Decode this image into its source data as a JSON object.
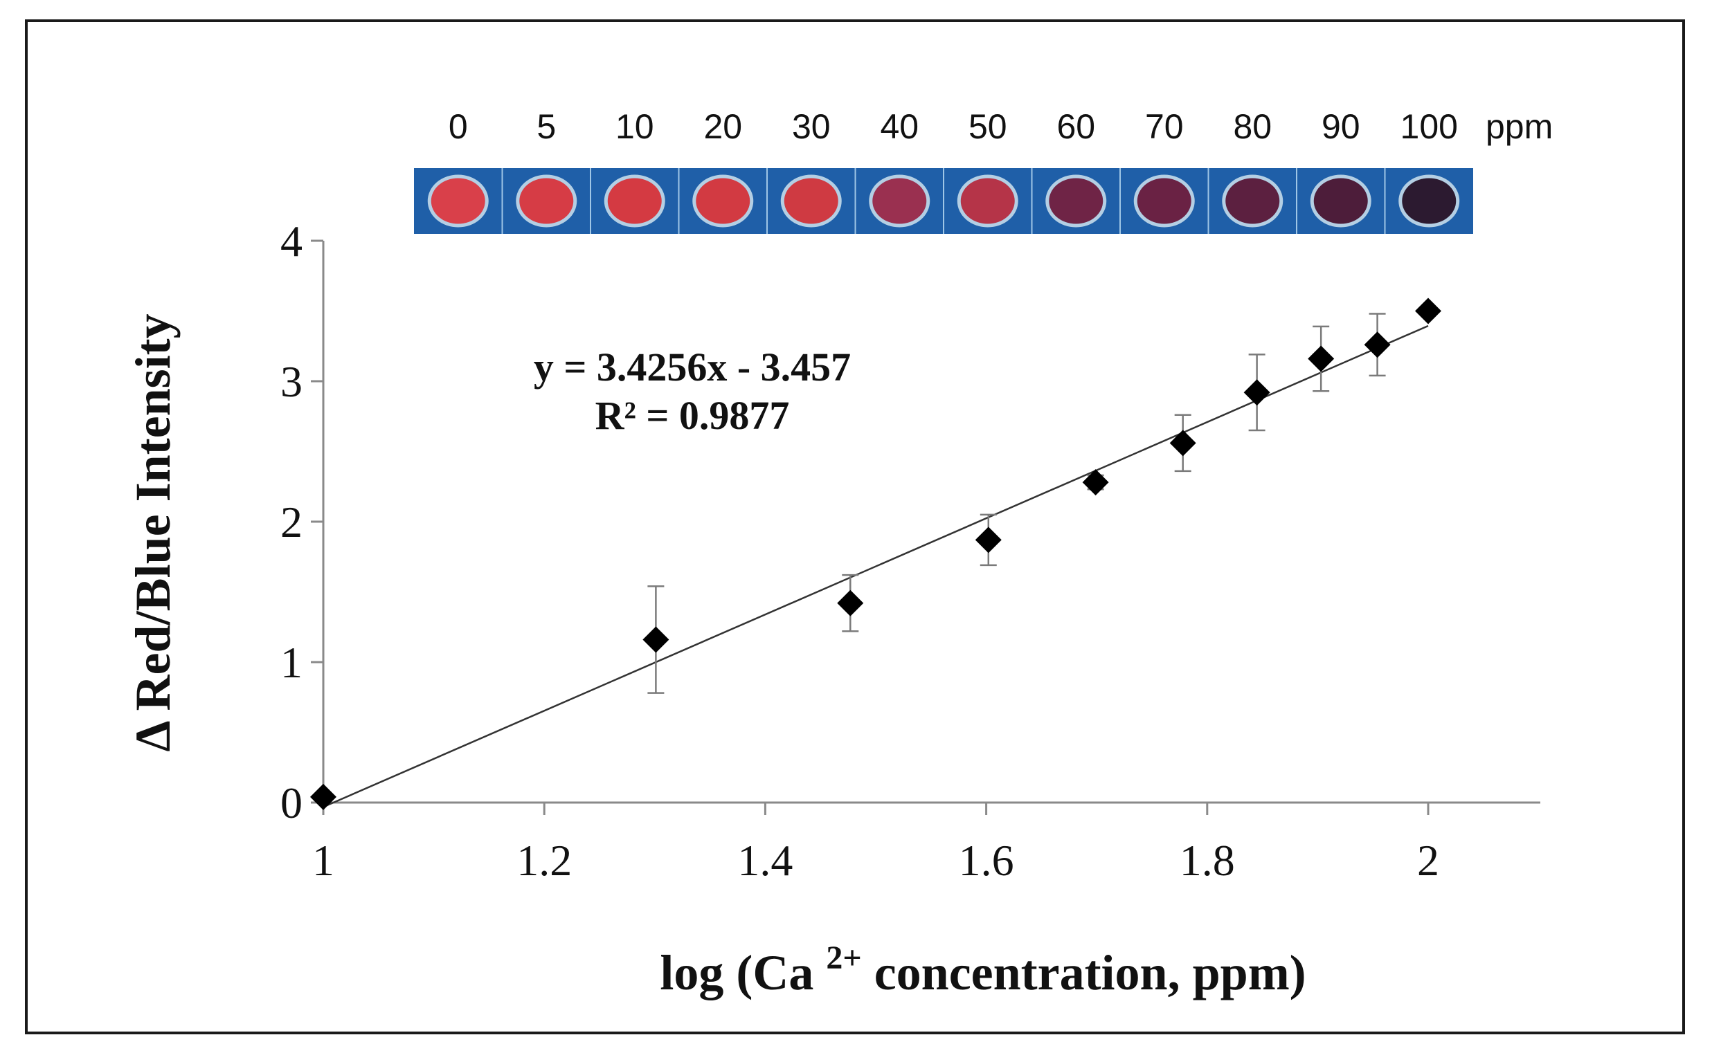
{
  "chart_data": {
    "type": "scatter",
    "title": "",
    "xlabel": "log (Ca 2+ concentration, ppm)",
    "xlabel_parts": {
      "prefix": "log (Ca ",
      "superscript": "2+",
      "suffix": " concentration, ppm)"
    },
    "ylabel": "Δ Red/Blue Intensity",
    "xlim": [
      1,
      2.1
    ],
    "ylim": [
      0,
      4
    ],
    "x_ticks": [
      1,
      1.2,
      1.4,
      1.6,
      1.8,
      2
    ],
    "x_tick_labels": [
      "1",
      "1.2",
      "1.4",
      "1.6",
      "1.8",
      "2"
    ],
    "y_ticks": [
      0,
      1,
      2,
      3,
      4
    ],
    "y_tick_labels": [
      "0",
      "1",
      "2",
      "3",
      "4"
    ],
    "grid": false,
    "series": [
      {
        "name": "Δ Red/Blue Intensity",
        "marker": "diamond",
        "x": [
          1.0,
          1.301,
          1.477,
          1.602,
          1.699,
          1.778,
          1.845,
          1.903,
          1.954,
          2.0
        ],
        "y": [
          0.04,
          1.16,
          1.42,
          1.87,
          2.28,
          2.56,
          2.92,
          3.16,
          3.26,
          3.5
        ],
        "error": [
          0.0,
          0.38,
          0.2,
          0.18,
          0.05,
          0.2,
          0.27,
          0.23,
          0.22,
          0.0
        ]
      }
    ],
    "trendline": {
      "slope": 3.4256,
      "intercept": -3.457,
      "x_range": [
        1.0,
        2.0
      ]
    },
    "annotations": {
      "equation": "y = 3.4256x - 3.457",
      "r_squared": "R² = 0.9877"
    }
  },
  "swatch_strip": {
    "labels": [
      "0",
      "5",
      "10",
      "20",
      "30",
      "40",
      "50",
      "60",
      "70",
      "80",
      "90",
      "100"
    ],
    "unit": "ppm",
    "background_color": "#1f5fa8",
    "spot_colors": [
      "#d9404a",
      "#d63c45",
      "#d43a42",
      "#d23a42",
      "#cf3a42",
      "#9a3050",
      "#b53448",
      "#6f2446",
      "#6a2244",
      "#5c2040",
      "#4d1d3a",
      "#2c1a30"
    ]
  }
}
